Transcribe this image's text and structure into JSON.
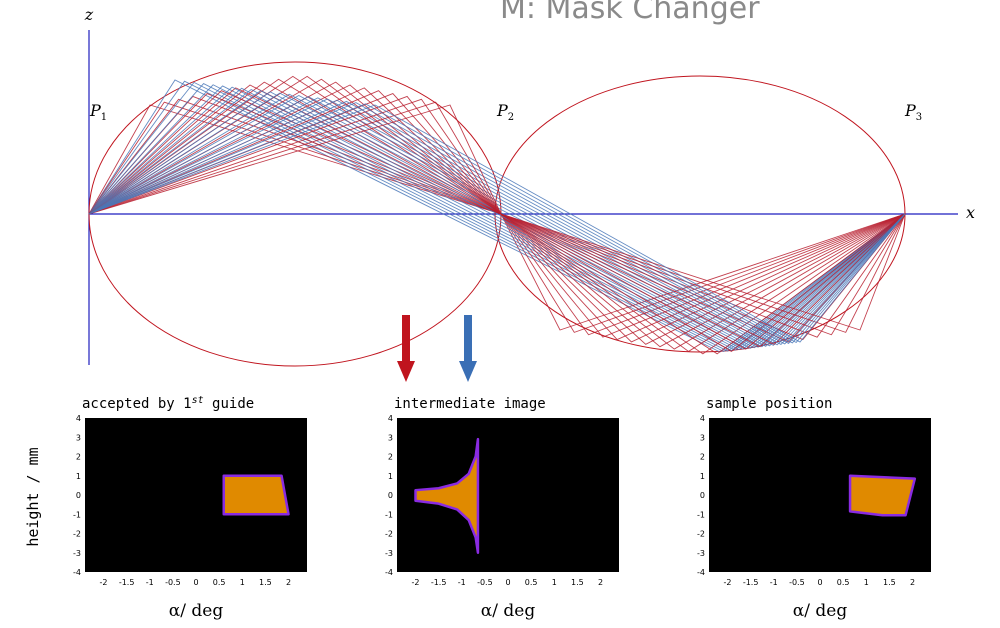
{
  "title": "M: Mask Changer",
  "axes": {
    "x": "x",
    "z": "z"
  },
  "points": [
    {
      "base": "P",
      "sub": "1"
    },
    {
      "base": "P",
      "sub": "2"
    },
    {
      "base": "P",
      "sub": "3"
    }
  ],
  "arrows": {
    "red_color": "#c0141e",
    "blue_color": "#3a6fb5"
  },
  "ray_colors": {
    "red": "#b82030",
    "blue": "#4a78b8",
    "ellipse": "#c0141e",
    "axis": "#1f1fbf"
  },
  "shared": {
    "ylabel": "height / mm",
    "xlabel": "α/ deg",
    "xticks": [
      "-2",
      "-1.5",
      "-1",
      "-0.5",
      "0",
      "0.5",
      "1",
      "1.5",
      "2"
    ],
    "yticks": [
      "4",
      "3",
      "2",
      "1",
      "0",
      "-1",
      "-2",
      "-3",
      "-4"
    ],
    "fill_color": "#e08a00",
    "edge_color": "#8a2be2"
  },
  "panels": [
    {
      "title": "accepted by 1st guide",
      "title_sup": "st",
      "shape": [
        [
          0.6,
          1.0
        ],
        [
          1.85,
          1.0
        ],
        [
          2.0,
          -1.0
        ],
        [
          0.6,
          -1.0
        ]
      ]
    },
    {
      "title": "intermediate image",
      "shape": [
        [
          -0.65,
          2.9
        ],
        [
          -0.7,
          2.0
        ],
        [
          -0.85,
          1.1
        ],
        [
          -1.1,
          0.6
        ],
        [
          -1.5,
          0.35
        ],
        [
          -2.0,
          0.25
        ],
        [
          -2.0,
          -0.3
        ],
        [
          -1.5,
          -0.45
        ],
        [
          -1.1,
          -0.75
        ],
        [
          -0.85,
          -1.3
        ],
        [
          -0.7,
          -2.2
        ],
        [
          -0.65,
          -3.0
        ]
      ]
    },
    {
      "title": "sample position",
      "shape": [
        [
          0.65,
          1.0
        ],
        [
          2.05,
          0.85
        ],
        [
          1.85,
          -1.05
        ],
        [
          1.35,
          -1.05
        ],
        [
          0.65,
          -0.85
        ]
      ]
    }
  ]
}
